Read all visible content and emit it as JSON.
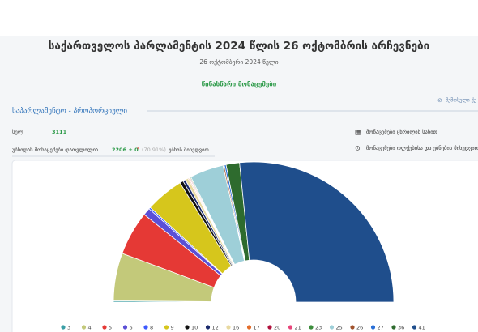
{
  "header": {
    "title": "საქართველოს პარლამენტის 2024 წლის 26 ოქტომბრის არჩევნები",
    "date": "26 ოქტომბერი 2024 წელი",
    "status": "წინასწარი მონაცემები",
    "share": "შემოსული ქუ"
  },
  "section": {
    "title": "საპარლამენტო - პროპორციული",
    "total_label": "სულ",
    "total": "3111",
    "counted_label": "უბნიდან მონაცემები დათვლილია",
    "counted": "2206 + 0",
    "star": "*",
    "percent": "(70.91%)",
    "counted_suffix": "უბნის მიხედვით",
    "links": [
      "მონაცემები ცხრილის სახით",
      "მონაცემები ოლქებისა და უბნების მიხედვით"
    ]
  },
  "chart_data": {
    "type": "semicircle",
    "categories": [
      "3",
      "4",
      "5",
      "6",
      "8",
      "9",
      "10",
      "12",
      "16",
      "17",
      "20",
      "21",
      "23",
      "25",
      "26",
      "27",
      "36",
      "41"
    ],
    "values": [
      0.3,
      11.0,
      10.2,
      1.7,
      0.4,
      8.8,
      0.8,
      0.6,
      0.7,
      0.2,
      0.1,
      0.2,
      0.2,
      7.8,
      0.3,
      0.4,
      3.1,
      53.2
    ],
    "colors": [
      "#3a9ea5",
      "#c3c97a",
      "#e53935",
      "#5b4fd6",
      "#3d5afe",
      "#d6c61c",
      "#111111",
      "#1a2a6c",
      "#e8d9a0",
      "#e46d2a",
      "#b0103c",
      "#e8457a",
      "#3c8d3c",
      "#9ecfd8",
      "#a0522d",
      "#2a6fd6",
      "#2e6b2e",
      "#1f4e8c"
    ]
  }
}
